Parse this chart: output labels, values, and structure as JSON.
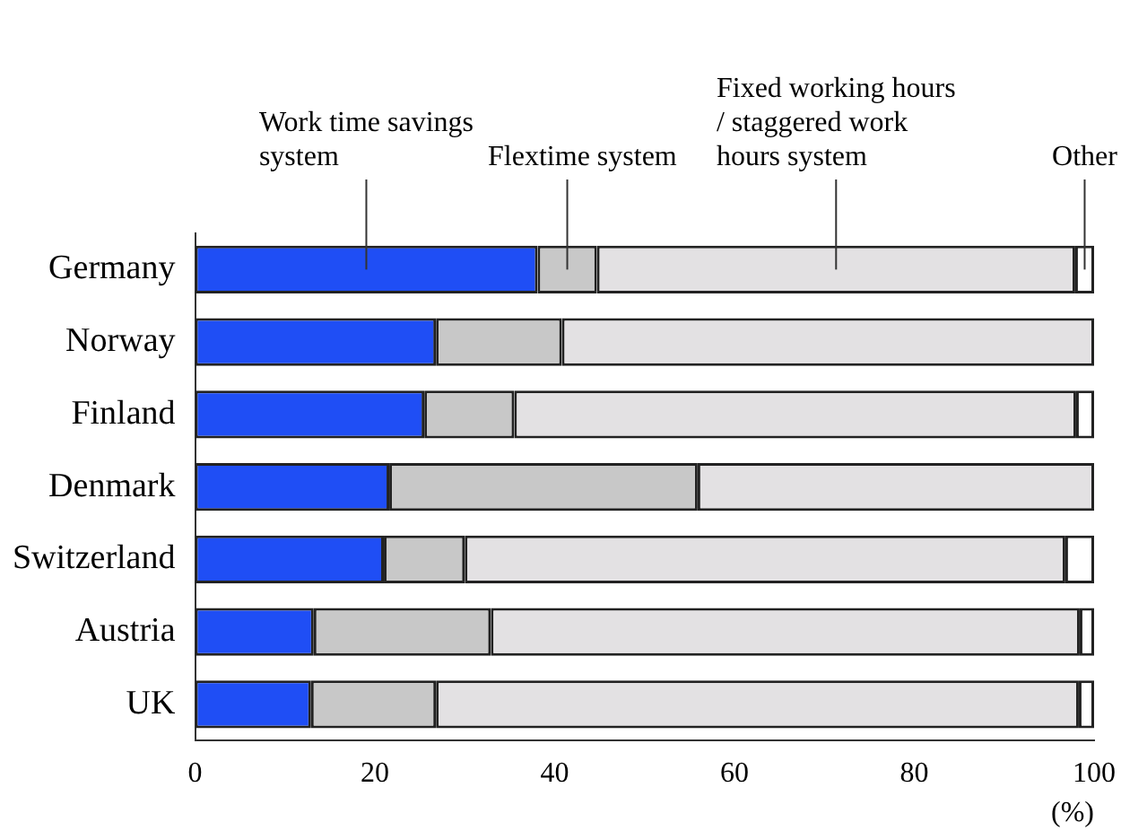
{
  "chart_data": {
    "type": "bar",
    "orientation": "horizontal",
    "stacked": true,
    "xlabel": "(%)",
    "categories": [
      "Germany",
      "Norway",
      "Finland",
      "Denmark",
      "Switzerland",
      "Austria",
      "UK"
    ],
    "series": [
      {
        "name": "Work time savings system",
        "color": "#1f4ef5",
        "values": [
          38.1,
          26.8,
          25.5,
          21.6,
          21.0,
          13.2,
          12.9
        ]
      },
      {
        "name": "Flextime system",
        "color": "#c8c8c8",
        "values": [
          6.6,
          14.0,
          10.0,
          34.3,
          9.0,
          19.7,
          13.9
        ]
      },
      {
        "name": "Fixed working hours / staggered work hours system",
        "color": "#e3e1e3",
        "values": [
          53.2,
          59.2,
          62.5,
          44.1,
          66.8,
          65.5,
          71.5
        ]
      },
      {
        "name": "Other",
        "color": "#ffffff",
        "values": [
          2.1,
          0,
          2.0,
          0,
          3.2,
          1.6,
          1.7
        ]
      }
    ],
    "xlim": [
      0,
      100
    ],
    "xticks": [
      0,
      20,
      40,
      60,
      80,
      100
    ],
    "grid": false
  }
}
